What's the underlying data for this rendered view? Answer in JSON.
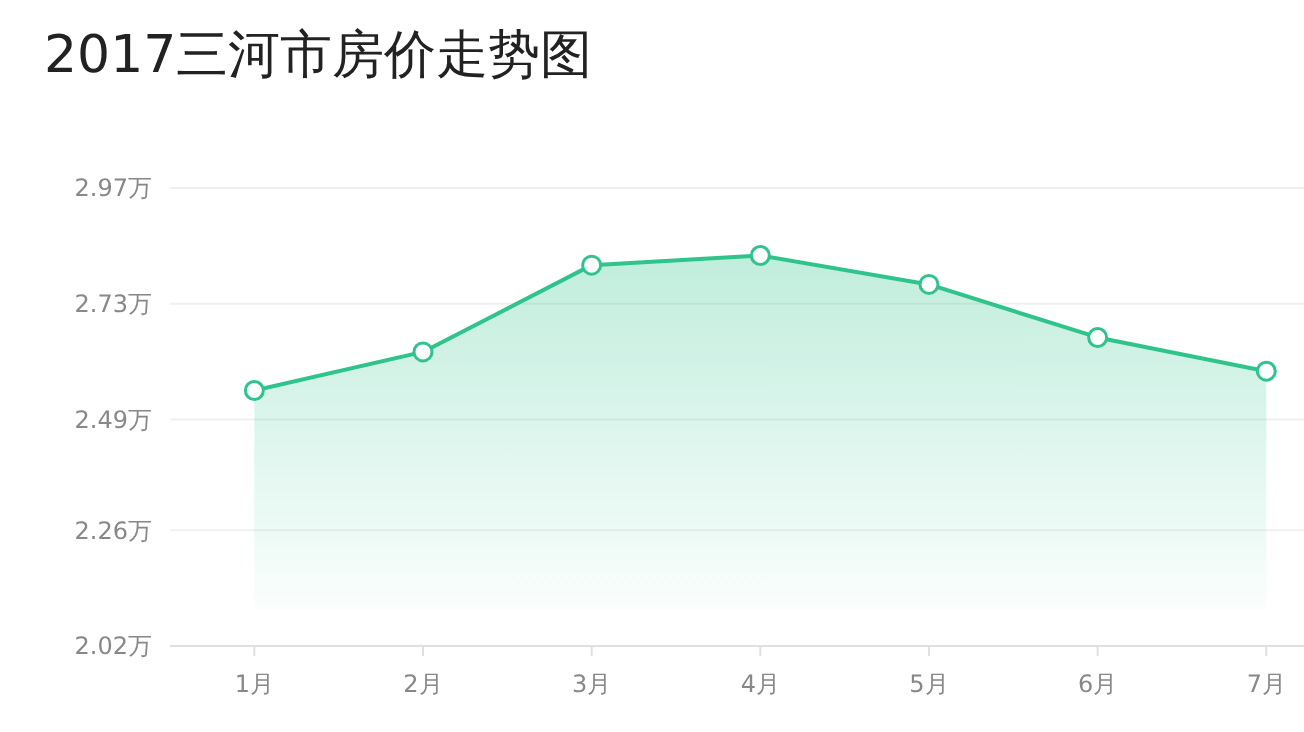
{
  "chart_data": {
    "type": "area",
    "title": "2017三河市房价走势图",
    "categories": [
      "1月",
      "2月",
      "3月",
      "4月",
      "5月",
      "6月",
      "7月"
    ],
    "series": [
      {
        "color": "#2ec48c",
        "values": [
          2.55,
          2.63,
          2.81,
          2.83,
          2.77,
          2.66,
          2.59
        ]
      }
    ],
    "ylim": [
      2.02,
      2.97
    ],
    "yticks": [
      {
        "value": 2.02,
        "label": "2.02万"
      },
      {
        "value": 2.26,
        "label": "2.26万"
      },
      {
        "value": 2.49,
        "label": "2.49万"
      },
      {
        "value": 2.73,
        "label": "2.73万"
      },
      {
        "value": 2.97,
        "label": "2.97万"
      }
    ],
    "grid": "y",
    "marker": "circle"
  }
}
